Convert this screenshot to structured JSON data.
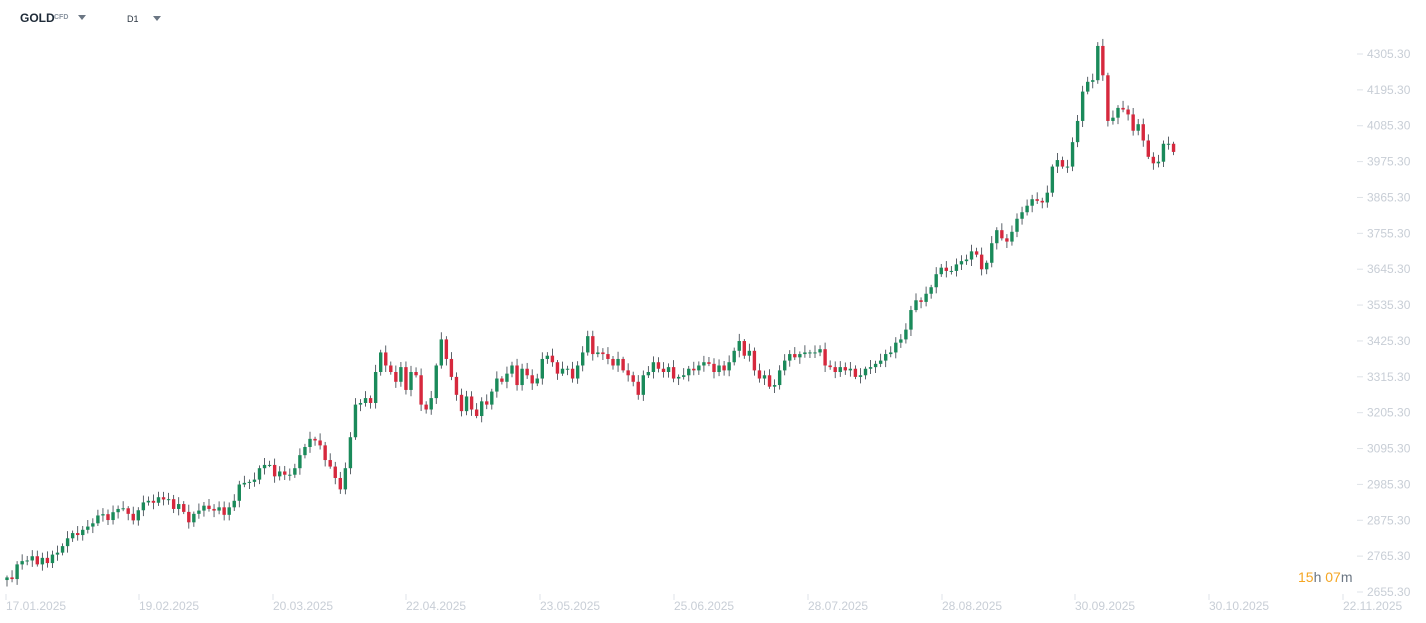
{
  "header": {
    "symbol": "GOLD",
    "instrument_type": "CFD",
    "timeframe": "D1",
    "symbol_dropdown_icon": "caret-down-icon",
    "timeframe_dropdown_icon": "caret-down-icon"
  },
  "timer": {
    "hours": "15",
    "hours_unit": "h",
    "minutes": "07",
    "minutes_unit": "m"
  },
  "colors": {
    "up": "#1a8a5a",
    "down": "#d6283d",
    "axis_text": "#c8ced6",
    "timer": "#f5a623"
  },
  "chart_data": {
    "type": "candlestick",
    "y_axis": {
      "ticks": [
        "4305.30",
        "4195.30",
        "4085.30",
        "3975.30",
        "3865.30",
        "3755.30",
        "3645.30",
        "3535.30",
        "3425.30",
        "3315.30",
        "3205.30",
        "3095.30",
        "2985.30",
        "2875.30",
        "2765.30",
        "2655.30"
      ],
      "range": [
        2655.3,
        4305.3
      ],
      "position": "right"
    },
    "x_axis": {
      "labels": [
        "17.01.2025",
        "19.02.2025",
        "20.03.2025",
        "22.04.2025",
        "23.05.2025",
        "25.06.2025",
        "28.07.2025",
        "28.08.2025",
        "30.09.2025",
        "30.10.2025",
        "22.11.2025"
      ]
    },
    "closes": [
      2700,
      2695,
      2740,
      2750,
      2752,
      2765,
      2740,
      2760,
      2744,
      2770,
      2776,
      2796,
      2820,
      2836,
      2830,
      2846,
      2856,
      2866,
      2890,
      2894,
      2876,
      2900,
      2910,
      2912,
      2895,
      2875,
      2906,
      2930,
      2935,
      2929,
      2946,
      2939,
      2940,
      2910,
      2925,
      2901,
      2869,
      2895,
      2905,
      2920,
      2910,
      2905,
      2915,
      2892,
      2915,
      2935,
      2985,
      2990,
      2993,
      3000,
      3035,
      3045,
      3045,
      3010,
      3025,
      3015,
      3015,
      3035,
      3075,
      3100,
      3125,
      3120,
      3105,
      3060,
      3040,
      3005,
      2970,
      3035,
      3130,
      3230,
      3235,
      3250,
      3235,
      3330,
      3390,
      3350,
      3330,
      3300,
      3345,
      3275,
      3330,
      3320,
      3230,
      3215,
      3250,
      3350,
      3430,
      3370,
      3315,
      3260,
      3210,
      3255,
      3215,
      3195,
      3240,
      3230,
      3270,
      3310,
      3300,
      3325,
      3350,
      3290,
      3340,
      3320,
      3295,
      3310,
      3370,
      3380,
      3360,
      3325,
      3340,
      3340,
      3310,
      3350,
      3390,
      3440,
      3385,
      3390,
      3385,
      3370,
      3350,
      3370,
      3335,
      3320,
      3300,
      3260,
      3320,
      3330,
      3360,
      3340,
      3330,
      3345,
      3310,
      3315,
      3320,
      3340,
      3335,
      3350,
      3360,
      3355,
      3330,
      3350,
      3335,
      3360,
      3395,
      3425,
      3380,
      3395,
      3335,
      3310,
      3320,
      3285,
      3290,
      3335,
      3365,
      3385,
      3375,
      3385,
      3390,
      3390,
      3390,
      3400,
      3350,
      3345,
      3330,
      3345,
      3335,
      3340,
      3315,
      3320,
      3340,
      3345,
      3355,
      3365,
      3385,
      3390,
      3420,
      3430,
      3460,
      3520,
      3550,
      3545,
      3570,
      3590,
      3630,
      3650,
      3640,
      3640,
      3660,
      3670,
      3675,
      3700,
      3690,
      3645,
      3665,
      3725,
      3765,
      3740,
      3730,
      3760,
      3800,
      3820,
      3840,
      3860,
      3855,
      3850,
      3880,
      3960,
      3980,
      3960,
      3960,
      4035,
      4100,
      4190,
      4220,
      4225,
      4330,
      4240,
      4100,
      4110,
      4140,
      4135,
      4120,
      4070,
      4090,
      4040,
      3990,
      3970,
      3975,
      4030,
      4030,
      4005
    ]
  }
}
